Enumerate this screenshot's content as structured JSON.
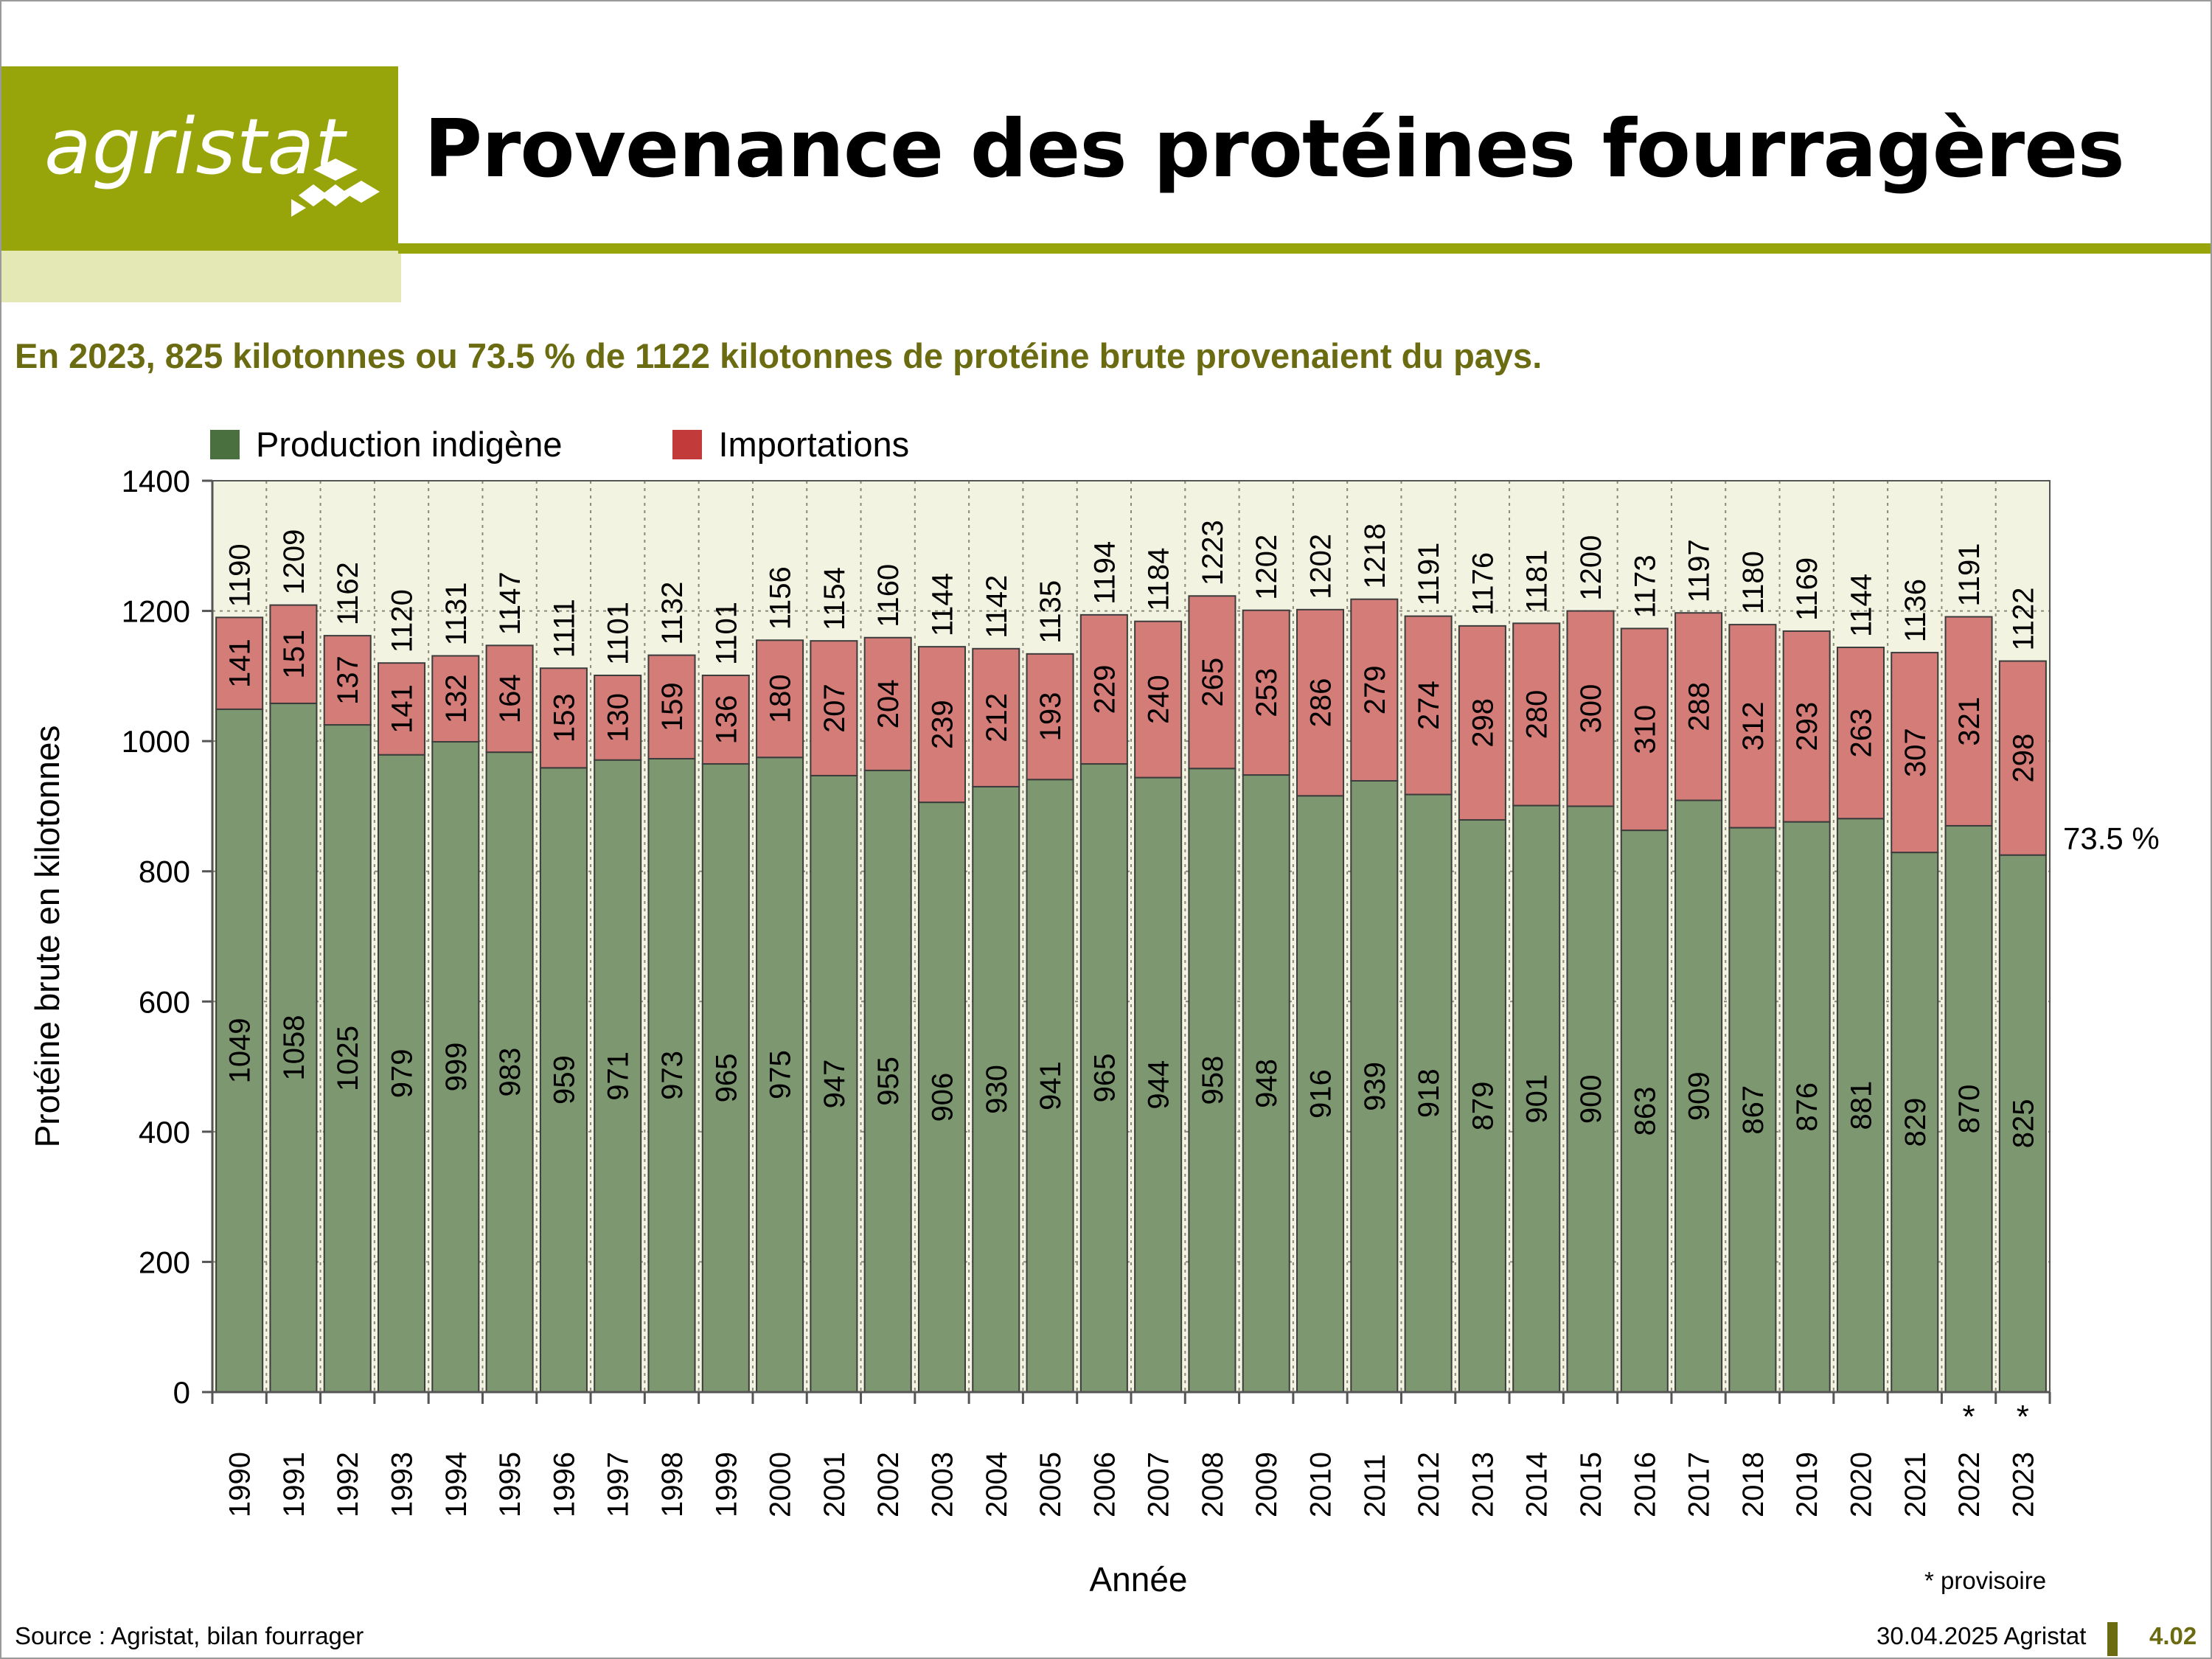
{
  "header": {
    "logo_text": "agristat",
    "title": "Provenance des protéines fourragères"
  },
  "subtitle": "En 2023, 825 kilotonnes ou 73.5 % de 1122 kilotonnes de protéine brute provenaient du pays.",
  "colors": {
    "brand": "#97a40a",
    "brand_light": "#e3e8b5",
    "subtitle": "#6b6b12",
    "domestic_bar": "#7d9770",
    "domestic_legend": "#4a7040",
    "import_bar": "#d47c78",
    "import_legend": "#c33a3a",
    "plot_bg": "#f3f3e2"
  },
  "chart_data": {
    "type": "bar",
    "stacked": true,
    "categories": [
      "1990",
      "1991",
      "1992",
      "1993",
      "1994",
      "1995",
      "1996",
      "1997",
      "1998",
      "1999",
      "2000",
      "2001",
      "2002",
      "2003",
      "2004",
      "2005",
      "2006",
      "2007",
      "2008",
      "2009",
      "2010",
      "2011",
      "2012",
      "2013",
      "2014",
      "2015",
      "2016",
      "2017",
      "2018",
      "2019",
      "2020",
      "2021",
      "2022",
      "2023"
    ],
    "provisional_marks": [
      "",
      "",
      "",
      "",
      "",
      "",
      "",
      "",
      "",
      "",
      "",
      "",
      "",
      "",
      "",
      "",
      "",
      "",
      "",
      "",
      "",
      "",
      "",
      "",
      "",
      "",
      "",
      "",
      "",
      "",
      "",
      "",
      "*",
      "*"
    ],
    "series": [
      {
        "name": "Production indigène",
        "values": [
          1049,
          1058,
          1025,
          979,
          999,
          983,
          959,
          971,
          973,
          965,
          975,
          947,
          955,
          906,
          930,
          941,
          965,
          944,
          958,
          948,
          916,
          939,
          918,
          879,
          901,
          900,
          863,
          909,
          867,
          876,
          881,
          829,
          870,
          825
        ]
      },
      {
        "name": "Importations",
        "values": [
          141,
          151,
          137,
          141,
          132,
          164,
          153,
          130,
          159,
          136,
          180,
          207,
          204,
          239,
          212,
          193,
          229,
          240,
          265,
          253,
          286,
          279,
          274,
          298,
          280,
          300,
          310,
          288,
          312,
          293,
          263,
          307,
          321,
          298
        ]
      }
    ],
    "totals": [
      1190,
      1209,
      1162,
      1120,
      1131,
      1147,
      1111,
      1101,
      1132,
      1101,
      1156,
      1154,
      1160,
      1144,
      1142,
      1135,
      1194,
      1184,
      1223,
      1202,
      1202,
      1218,
      1191,
      1176,
      1181,
      1200,
      1173,
      1197,
      1180,
      1169,
      1144,
      1136,
      1191,
      1122
    ],
    "xlabel": "Année",
    "ylabel": "Protéine brute en kilotonnes",
    "ylim": [
      0,
      1400
    ],
    "yticks": [
      0,
      200,
      400,
      600,
      800,
      1000,
      1200,
      1400
    ],
    "grid": true,
    "legend_position": "top-left",
    "annotation": "73.5 %"
  },
  "notes": {
    "provisional": "* provisoire"
  },
  "footer": {
    "source": "Source : Agristat, bilan fourrager",
    "date": "30.04.2025 Agristat",
    "page": "4.02"
  }
}
